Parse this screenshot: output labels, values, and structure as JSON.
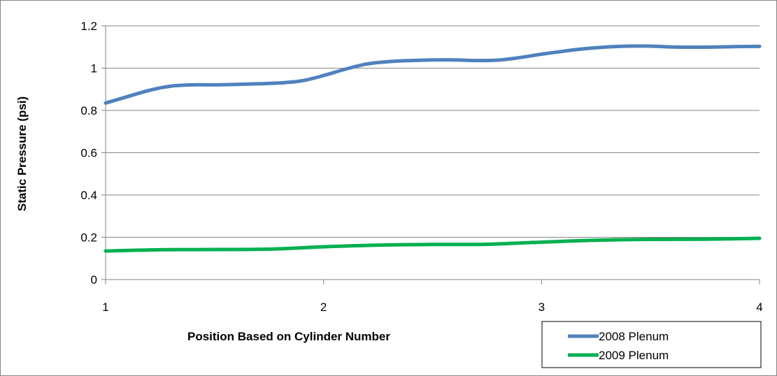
{
  "chart_data": {
    "type": "line",
    "title": "",
    "xlabel": "Position Based on Cylinder Number",
    "ylabel": "Static Pressure (psi)",
    "xlim": [
      1,
      4
    ],
    "ylim": [
      0,
      1.2
    ],
    "x_ticks": [
      1,
      2,
      3,
      4
    ],
    "x_tick_labels": [
      "1",
      "2",
      "3",
      "4"
    ],
    "y_ticks": [
      0,
      0.2,
      0.4,
      0.6,
      0.8,
      1.0,
      1.2
    ],
    "y_tick_labels": [
      "0",
      "0.2",
      "0.4",
      "0.6",
      "0.8",
      "1",
      "1.2"
    ],
    "grid": "horizontal",
    "legend_position": "bottom-right",
    "series": [
      {
        "name": "2008 Plenum",
        "color": "#4F81BD",
        "x": [
          1.0,
          1.1,
          1.2,
          1.3,
          1.4,
          1.5,
          1.6,
          1.7,
          1.8,
          1.9,
          2.0,
          2.1,
          2.2,
          2.3,
          2.4,
          2.5,
          2.6,
          2.7,
          2.8,
          2.9,
          3.0,
          3.1,
          3.2,
          3.3,
          3.4,
          3.5,
          3.6,
          3.7,
          3.8,
          3.9,
          4.0
        ],
        "values": [
          0.835,
          0.865,
          0.895,
          0.915,
          0.921,
          0.921,
          0.923,
          0.926,
          0.93,
          0.94,
          0.965,
          0.995,
          1.02,
          1.031,
          1.036,
          1.039,
          1.039,
          1.036,
          1.038,
          1.05,
          1.066,
          1.08,
          1.092,
          1.1,
          1.104,
          1.104,
          1.1,
          1.099,
          1.1,
          1.102,
          1.103
        ]
      },
      {
        "name": "2009 Plenum",
        "color": "#00B050",
        "x": [
          1.0,
          1.25,
          1.5,
          1.75,
          2.0,
          2.25,
          2.5,
          2.75,
          3.0,
          3.25,
          3.5,
          3.75,
          4.0
        ],
        "values": [
          0.135,
          0.141,
          0.142,
          0.144,
          0.155,
          0.163,
          0.166,
          0.167,
          0.177,
          0.186,
          0.19,
          0.191,
          0.195
        ]
      }
    ]
  }
}
